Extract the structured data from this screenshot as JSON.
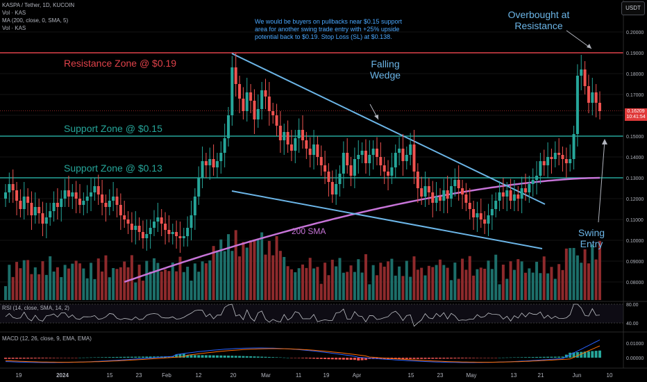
{
  "header": {
    "title": "KASPA / Tether, 1D, KUCOIN",
    "ind1": "Vol · KAS",
    "ind2": "MA (200, close, 0, SMA, 5)",
    "ind3": "Vol · KAS",
    "rsi_label": "RSI (14, close, SMA, 14, 2)",
    "macd_label": "MACD (12, 26, close, 9, EMA, EMA)"
  },
  "currency_button": "USDT",
  "last_price": {
    "value": "0.16209",
    "countdown": "10:41:54"
  },
  "annotations": {
    "resistance": "Resistance Zone @ $0.19",
    "support1": "Support Zone @ $0.15",
    "support2": "Support Zone @ $0.13",
    "note": "We would be buyers on pullbacks near $0.15 support area for another swing trade entry with +25% upside potential back to $0.19. Stop Loss (SL) at $0.138.",
    "overbought": [
      "Overbought at",
      "Resistance"
    ],
    "wedge": [
      "Falling",
      "Wedge"
    ],
    "swing": [
      "Swing",
      "Entry"
    ],
    "sma": "200 SMA"
  },
  "colors": {
    "background": "#000000",
    "up": "#26a69a",
    "down": "#ef5350",
    "resistance": "#e0424a",
    "support": "#26a69a",
    "wedge": "#6cb6e8",
    "sma": "#c774d8",
    "note": "#4aa8ff",
    "rsi": "#c0c3c8",
    "macd_line": "#2962ff",
    "signal_line": "#ff6d00"
  },
  "chart_data": {
    "type": "candlestick",
    "symbol": "KASPA / Tether",
    "interval": "1D",
    "exchange": "KUCOIN",
    "price_axis": {
      "ticks": [
        "0.20000",
        "0.19000",
        "0.18000",
        "0.17000",
        "0.16000",
        "0.15000",
        "0.14000",
        "0.13000",
        "0.12000",
        "0.11000",
        "0.10000",
        "0.09000",
        "0.08000"
      ],
      "range": [
        0.073,
        0.207
      ]
    },
    "x_axis_labels": [
      "19",
      "2024",
      "15",
      "23",
      "Feb",
      "12",
      "20",
      "Mar",
      "11",
      "19",
      "Apr",
      "15",
      "23",
      "May",
      "13",
      "21",
      "Jun",
      "10"
    ],
    "levels": {
      "resistance": 0.19,
      "support_1": 0.15,
      "support_2": 0.13
    },
    "candles_close": [
      0.123,
      0.127,
      0.124,
      0.119,
      0.115,
      0.121,
      0.118,
      0.112,
      0.116,
      0.113,
      0.108,
      0.111,
      0.114,
      0.118,
      0.116,
      0.12,
      0.124,
      0.121,
      0.123,
      0.12,
      0.117,
      0.119,
      0.121,
      0.123,
      0.126,
      0.122,
      0.118,
      0.116,
      0.119,
      0.121,
      0.117,
      0.112,
      0.11,
      0.108,
      0.105,
      0.107,
      0.104,
      0.101,
      0.103,
      0.106,
      0.109,
      0.111,
      0.108,
      0.105,
      0.103,
      0.104,
      0.102,
      0.101,
      0.102,
      0.106,
      0.112,
      0.121,
      0.13,
      0.138,
      0.136,
      0.139,
      0.135,
      0.138,
      0.142,
      0.149,
      0.16,
      0.183,
      0.175,
      0.168,
      0.162,
      0.171,
      0.167,
      0.158,
      0.163,
      0.172,
      0.169,
      0.162,
      0.16,
      0.155,
      0.148,
      0.152,
      0.146,
      0.143,
      0.149,
      0.153,
      0.148,
      0.144,
      0.141,
      0.146,
      0.14,
      0.136,
      0.133,
      0.128,
      0.122,
      0.127,
      0.132,
      0.142,
      0.136,
      0.131,
      0.139,
      0.141,
      0.143,
      0.137,
      0.141,
      0.144,
      0.14,
      0.136,
      0.133,
      0.131,
      0.135,
      0.142,
      0.144,
      0.138,
      0.141,
      0.146,
      0.133,
      0.125,
      0.121,
      0.126,
      0.123,
      0.118,
      0.121,
      0.119,
      0.124,
      0.12,
      0.126,
      0.129,
      0.125,
      0.122,
      0.118,
      0.115,
      0.111,
      0.113,
      0.11,
      0.108,
      0.112,
      0.115,
      0.119,
      0.123,
      0.121,
      0.124,
      0.119,
      0.122,
      0.12,
      0.125,
      0.123,
      0.127,
      0.129,
      0.131,
      0.138,
      0.136,
      0.14,
      0.139,
      0.142,
      0.141,
      0.139,
      0.137,
      0.139,
      0.151,
      0.179,
      0.182,
      0.174,
      0.166,
      0.171,
      0.166,
      0.162
    ],
    "sma200": {
      "start": 0.08,
      "mid": 0.1,
      "end": 0.13,
      "label": "200 SMA"
    },
    "rsi": {
      "period": 14,
      "levels": [
        80.0,
        40.0
      ],
      "axis_labels": [
        "80.00",
        "40.00"
      ]
    },
    "macd": {
      "fast": 12,
      "slow": 26,
      "signal": 9,
      "axis_labels": [
        "0.01000",
        "0.00000"
      ]
    }
  }
}
